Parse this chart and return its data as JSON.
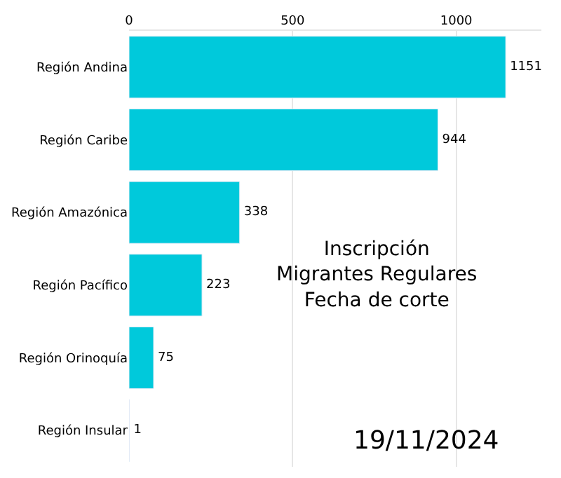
{
  "chart_data": {
    "type": "bar",
    "orientation": "horizontal",
    "categories": [
      "Región Andina",
      "Región Caribe",
      "Región Amazónica",
      "Región Pacífico",
      "Región Orinoquía",
      "Región Insular"
    ],
    "values": [
      1151,
      944,
      338,
      223,
      75,
      1
    ],
    "color": "#00c9db",
    "xlim": [
      0,
      1260
    ],
    "xticks": [
      0,
      500,
      1000
    ],
    "grid": "x",
    "data_labels": true,
    "legend": false,
    "annotations": [
      "Inscripción\nMigrantes Regulares\nFecha de corte",
      "19/11/2024"
    ]
  }
}
